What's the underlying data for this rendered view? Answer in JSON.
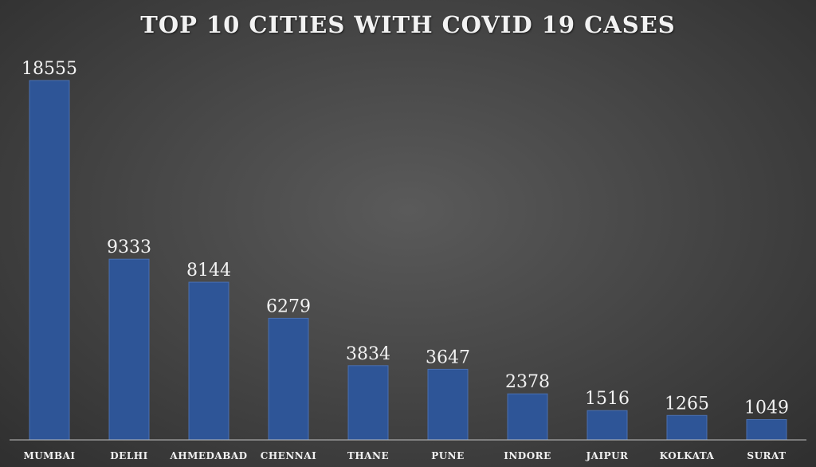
{
  "chart_data": {
    "type": "bar",
    "title": "Top 10 cities with COVID 19 cases",
    "categories": [
      "MUMBAI",
      "DELHI",
      "AHMEDABAD",
      "CHENNAI",
      "THANE",
      "PUNE",
      "INDORE",
      "JAIPUR",
      "KOLKATA",
      "SURAT"
    ],
    "values": [
      18555,
      9333,
      8144,
      6279,
      3834,
      3647,
      2378,
      1516,
      1265,
      1049
    ],
    "xlabel": "",
    "ylabel": "",
    "ylim": [
      0,
      18555
    ],
    "grid": false,
    "legend": "none",
    "bar_color": "#2e5597"
  }
}
